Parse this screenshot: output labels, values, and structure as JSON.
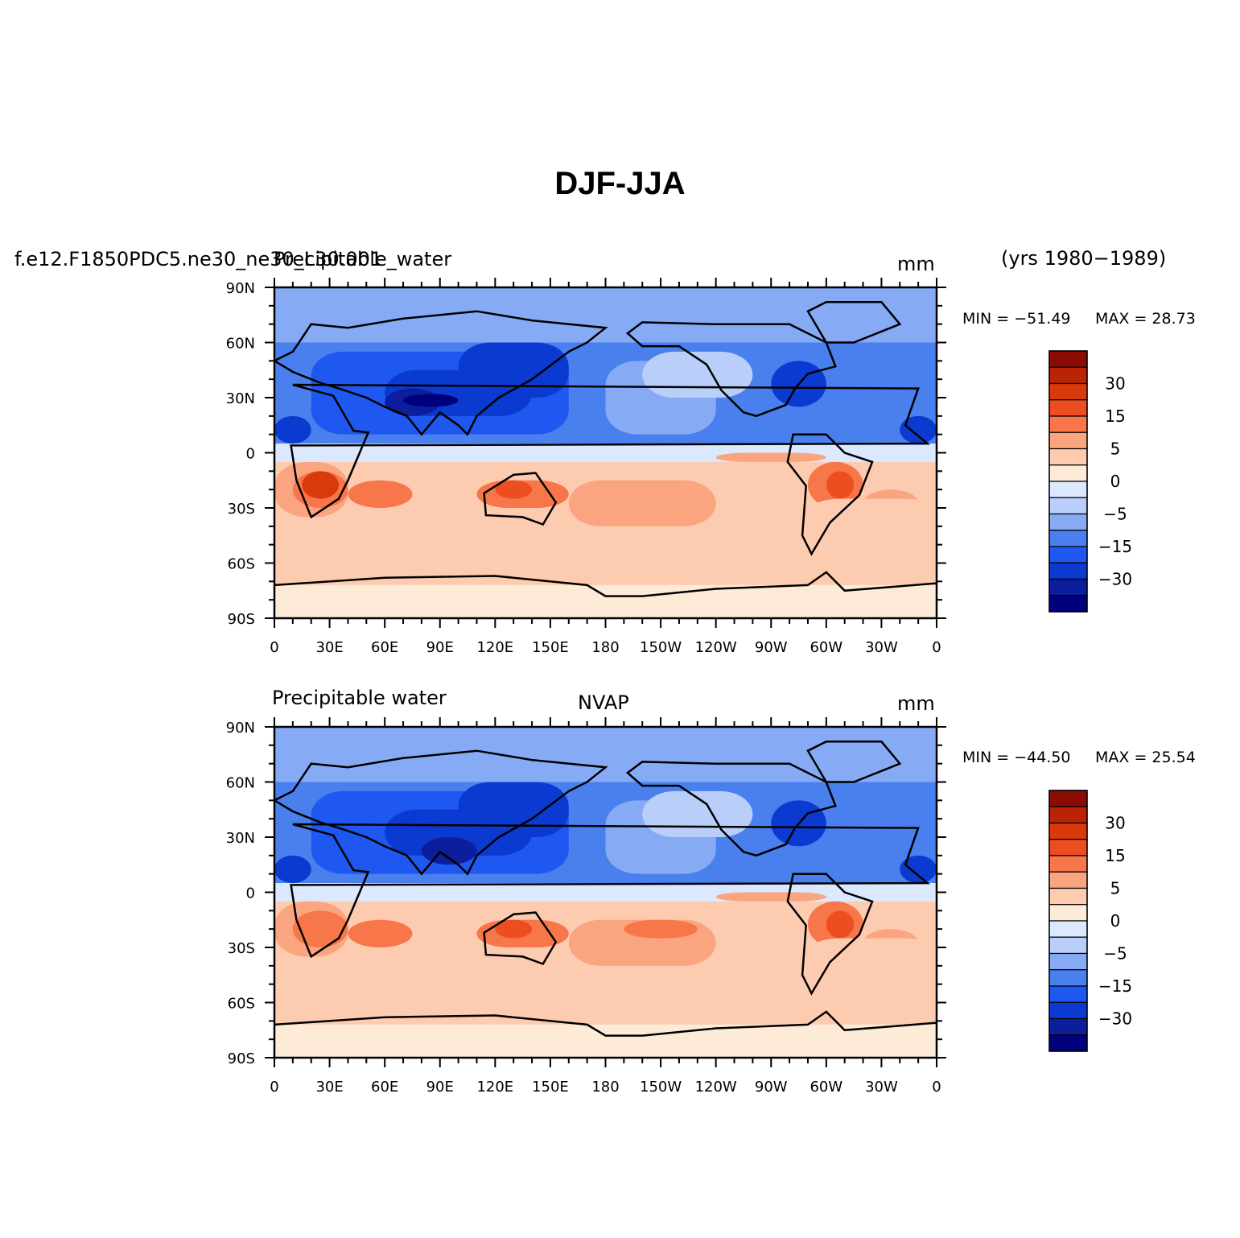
{
  "figure": {
    "title": "DJF-JJA"
  },
  "palette": [
    "#00007f",
    "#0c1e9b",
    "#0a3ad0",
    "#1f58f0",
    "#4a7fee",
    "#87aaf5",
    "#b9cffa",
    "#dbe8fd",
    "#fdebd8",
    "#fccbb0",
    "#fba580",
    "#f7764a",
    "#ec4e22",
    "#d83a0c",
    "#b92405",
    "#8a0c02"
  ],
  "chart_data": [
    {
      "type": "heatmap",
      "case": "f.e12.F1850PDC5.ne30_ne30_L30.001",
      "variable": "Precipitable_water",
      "units": "mm",
      "years": "(yrs 1980−1989)",
      "min_label": "MIN = −51.49",
      "max_label": "MAX =  28.73",
      "min": -51.49,
      "max": 28.73,
      "lon_ticks": [
        "0",
        "30E",
        "60E",
        "90E",
        "120E",
        "150E",
        "180",
        "150W",
        "120W",
        "90W",
        "60W",
        "30W",
        "0"
      ],
      "lat_ticks": [
        "90N",
        "60N",
        "30N",
        "0",
        "30S",
        "60S",
        "90S"
      ],
      "colorbar_labels": [
        "30",
        "15",
        "5",
        "0",
        "−5",
        "−15",
        "−30"
      ]
    },
    {
      "type": "heatmap",
      "left_title": "Precipitable water",
      "center_title": "NVAP",
      "units": "mm",
      "min_label": "MIN = −44.50",
      "max_label": "MAX =  25.54",
      "min": -44.5,
      "max": 25.54,
      "lon_ticks": [
        "0",
        "30E",
        "60E",
        "90E",
        "120E",
        "150E",
        "180",
        "150W",
        "120W",
        "90W",
        "60W",
        "30W",
        "0"
      ],
      "lat_ticks": [
        "90N",
        "60N",
        "30N",
        "0",
        "30S",
        "60S",
        "90S"
      ],
      "colorbar_labels": [
        "30",
        "15",
        "5",
        "0",
        "−5",
        "−15",
        "−30"
      ]
    }
  ]
}
